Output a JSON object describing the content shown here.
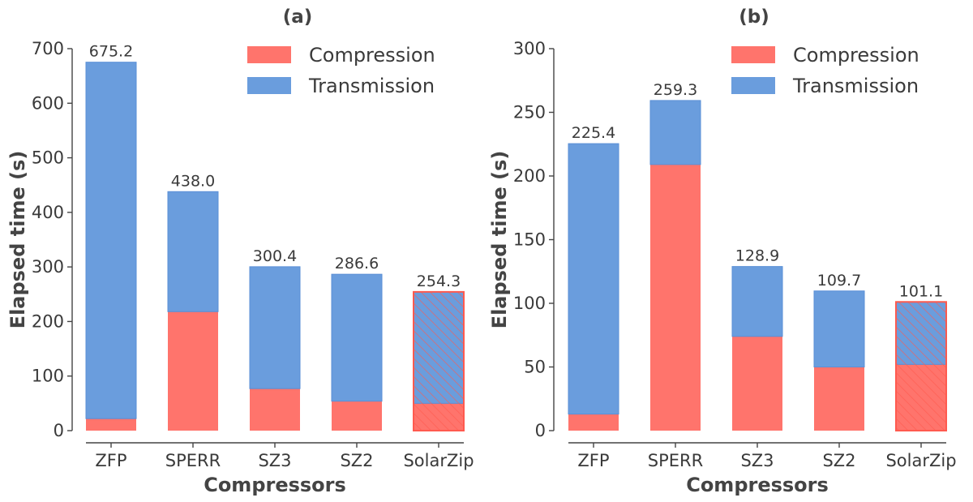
{
  "colors": {
    "compression": "#ff746c",
    "transmission": "#6a9ddd",
    "compression_edge": "#ff5a4f",
    "transmission_edge": "#5a8fd6",
    "axis": "#444444"
  },
  "chart_data": [
    {
      "type": "bar",
      "stacked": true,
      "title": "(a)",
      "xlabel": "Compressors",
      "ylabel": "Elapsed time (s)",
      "ylim": [
        0,
        700
      ],
      "yticks": [
        0,
        100,
        200,
        300,
        400,
        500,
        600,
        700
      ],
      "categories": [
        "ZFP",
        "SPERR",
        "SZ3",
        "SZ2",
        "SolarZip"
      ],
      "series": [
        {
          "name": "Compression",
          "values": [
            22,
            218,
            77,
            54,
            50
          ]
        },
        {
          "name": "Transmission",
          "values": [
            653.2,
            220,
            223.4,
            232.6,
            204.3
          ]
        }
      ],
      "totals": [
        "675.2",
        "438.0",
        "300.4",
        "286.6",
        "254.3"
      ],
      "hatched_category": "SolarZip",
      "legend": "top-right"
    },
    {
      "type": "bar",
      "stacked": true,
      "title": "(b)",
      "xlabel": "Compressors",
      "ylabel": "Elapsed time (s)",
      "ylim": [
        0,
        300
      ],
      "yticks": [
        0,
        50,
        100,
        150,
        200,
        250,
        300
      ],
      "categories": [
        "ZFP",
        "SPERR",
        "SZ3",
        "SZ2",
        "SolarZip"
      ],
      "series": [
        {
          "name": "Compression",
          "values": [
            13,
            209,
            74,
            50,
            52
          ]
        },
        {
          "name": "Transmission",
          "values": [
            212.4,
            50.3,
            54.9,
            59.7,
            49.1
          ]
        }
      ],
      "totals": [
        "225.4",
        "259.3",
        "128.9",
        "109.7",
        "101.1"
      ],
      "hatched_category": "SolarZip",
      "legend": "top-right"
    }
  ]
}
